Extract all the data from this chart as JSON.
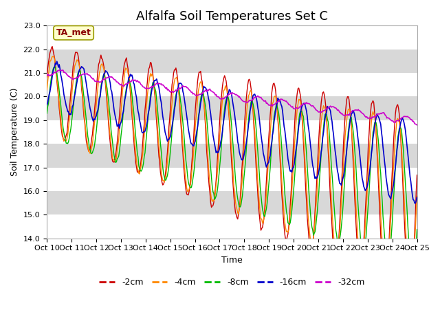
{
  "title": "Alfalfa Soil Temperatures Set C",
  "xlabel": "Time",
  "ylabel": "Soil Temperature (C)",
  "ylim": [
    14.0,
    23.0
  ],
  "yticks": [
    14.0,
    15.0,
    16.0,
    17.0,
    18.0,
    19.0,
    20.0,
    21.0,
    22.0,
    23.0
  ],
  "xtick_labels": [
    "Oct 10",
    "Oct 11",
    "Oct 12",
    "Oct 13",
    "Oct 14",
    "Oct 15",
    "Oct 16",
    "Oct 17",
    "Oct 18",
    "Oct 19",
    "Oct 20",
    "Oct 21",
    "Oct 22",
    "Oct 23",
    "Oct 24",
    "Oct 25"
  ],
  "colors": {
    "-2cm": "#cc0000",
    "-4cm": "#ff8800",
    "-8cm": "#00bb00",
    "-16cm": "#0000cc",
    "-32cm": "#cc00cc"
  },
  "legend_labels": [
    "-2cm",
    "-4cm",
    "-8cm",
    "-16cm",
    "-32cm"
  ],
  "annotation_text": "TA_met",
  "annotation_bgcolor": "#ffffcc",
  "annotation_edgecolor": "#999900",
  "plot_bg_color": "#d8d8d8",
  "fig_bg_color": "#ffffff",
  "n_points": 480,
  "title_fontsize": 13,
  "axis_fontsize": 9,
  "tick_fontsize": 8
}
